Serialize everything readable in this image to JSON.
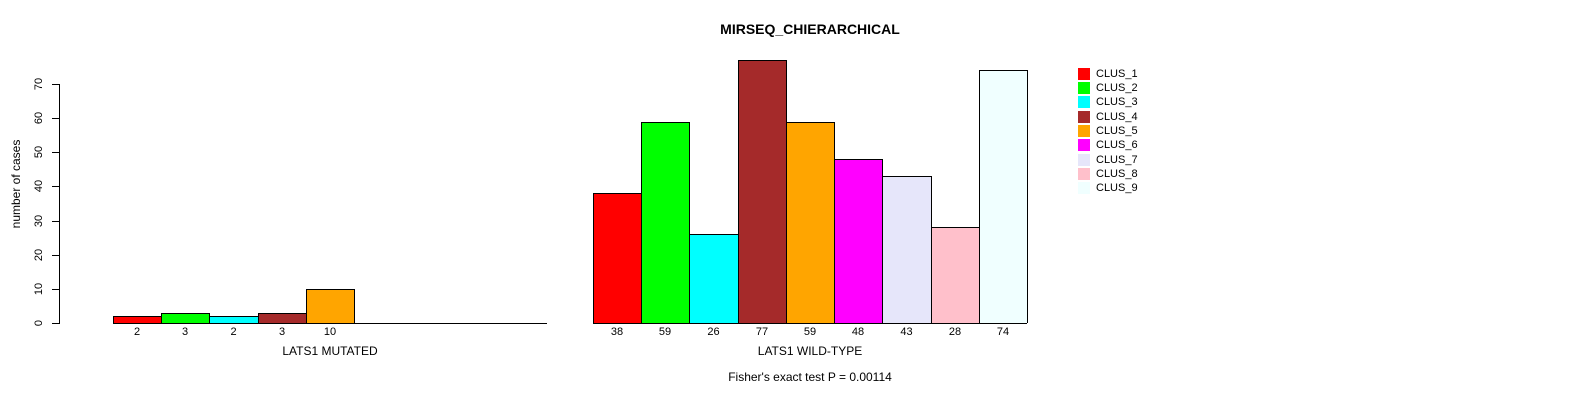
{
  "chart_data": {
    "type": "bar",
    "title": "MIRSEQ_CHIERARCHICAL",
    "ylabel": "number of cases",
    "ylim": [
      0,
      70
    ],
    "yticks": [
      0,
      10,
      20,
      30,
      40,
      50,
      60,
      70
    ],
    "grid": false,
    "legend_position": "right",
    "footnote": "Fisher's exact test P = 0.00114",
    "groups": [
      {
        "xlabel": "LATS1 MUTATED",
        "total_slots": 9,
        "bars": [
          {
            "cluster": "CLUS_1",
            "value": 2,
            "color": "#FF0000"
          },
          {
            "cluster": "CLUS_2",
            "value": 3,
            "color": "#00FF00"
          },
          {
            "cluster": "CLUS_3",
            "value": 2,
            "color": "#00FFFF"
          },
          {
            "cluster": "CLUS_4",
            "value": 3,
            "color": "#A52A2A"
          },
          {
            "cluster": "CLUS_5",
            "value": 10,
            "color": "#FFA500"
          }
        ]
      },
      {
        "xlabel": "LATS1 WILD-TYPE",
        "total_slots": 9,
        "bars": [
          {
            "cluster": "CLUS_1",
            "value": 38,
            "color": "#FF0000"
          },
          {
            "cluster": "CLUS_2",
            "value": 59,
            "color": "#00FF00"
          },
          {
            "cluster": "CLUS_3",
            "value": 26,
            "color": "#00FFFF"
          },
          {
            "cluster": "CLUS_4",
            "value": 77,
            "color": "#A52A2A"
          },
          {
            "cluster": "CLUS_5",
            "value": 59,
            "color": "#FFA500"
          },
          {
            "cluster": "CLUS_6",
            "value": 48,
            "color": "#FF00FF"
          },
          {
            "cluster": "CLUS_7",
            "value": 43,
            "color": "#E6E6FA"
          },
          {
            "cluster": "CLUS_8",
            "value": 28,
            "color": "#FFC0CB"
          },
          {
            "cluster": "CLUS_9",
            "value": 74,
            "color": "#F0FFFF"
          }
        ]
      }
    ],
    "legend": [
      {
        "label": "CLUS_1",
        "color": "#FF0000"
      },
      {
        "label": "CLUS_2",
        "color": "#00FF00"
      },
      {
        "label": "CLUS_3",
        "color": "#00FFFF"
      },
      {
        "label": "CLUS_4",
        "color": "#A52A2A"
      },
      {
        "label": "CLUS_5",
        "color": "#FFA500"
      },
      {
        "label": "CLUS_6",
        "color": "#FF00FF"
      },
      {
        "label": "CLUS_7",
        "color": "#E6E6FA"
      },
      {
        "label": "CLUS_8",
        "color": "#FFC0CB"
      },
      {
        "label": "CLUS_9",
        "color": "#F0FFFF"
      }
    ]
  }
}
